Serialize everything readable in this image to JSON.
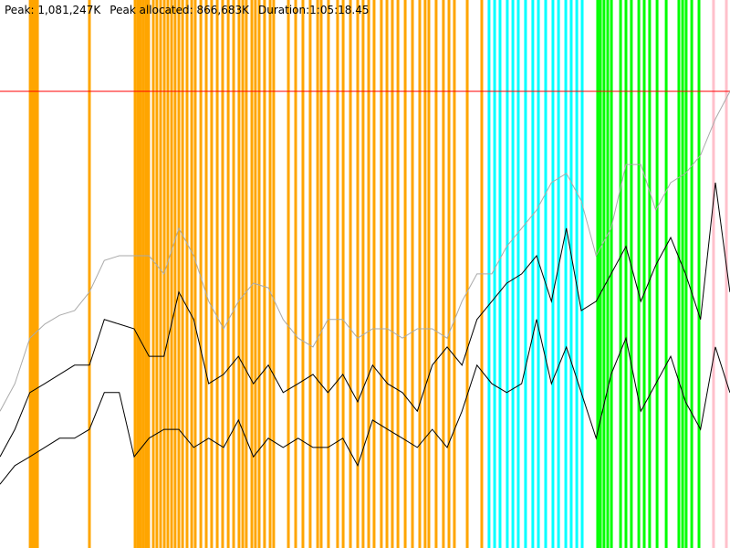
{
  "chart_data": {
    "type": "line",
    "annotations": [
      "Peak: 1,081,247K",
      "Peak allocated: 866,683K",
      "Duration:1:05:18.45"
    ],
    "xlim": [
      0,
      3918.45
    ],
    "ylim": [
      0,
      1297500
    ],
    "peak_line": {
      "value": 1081247,
      "color": "#ff0000"
    },
    "events": [
      {
        "color": "#ffa500",
        "x": [
          162,
          171,
          181,
          191,
          201,
          480,
          725,
          740,
          754,
          769,
          784,
          798,
          823,
          842,
          862,
          882,
          901,
          921,
          940,
          960,
          980,
          1004,
          1029,
          1048,
          1078,
          1107,
          1136,
          1166,
          1195,
          1225,
          1254,
          1283,
          1303,
          1322,
          1352,
          1371,
          1391,
          1420,
          1450,
          1469,
          1548,
          1587,
          1626,
          1665,
          1705,
          1724,
          1763,
          1812,
          1842,
          1881,
          1920,
          1949,
          1979,
          2008,
          2047,
          2077,
          2106,
          2136,
          2175,
          2214,
          2253,
          2282,
          2302,
          2341,
          2380,
          2410,
          2439,
          2508,
          2586
        ]
      },
      {
        "color": "#00ffff",
        "x": [
          2625,
          2655,
          2684,
          2723,
          2753,
          2782,
          2821,
          2860,
          2890,
          2929,
          2968,
          2998,
          3037,
          3066,
          3096,
          3125
        ]
      },
      {
        "color": "#00ff00",
        "x": [
          3208,
          3223,
          3242,
          3262,
          3282,
          3331,
          3360,
          3389,
          3429,
          3458,
          3487,
          3527,
          3576,
          3644,
          3664,
          3683,
          3713,
          3752
        ]
      },
      {
        "color": "#ffc0cb",
        "x": [
          3830,
          3899
        ]
      }
    ],
    "x": [
      0,
      80,
      160,
      240,
      320,
      400,
      480,
      560,
      640,
      720,
      800,
      880,
      960,
      1040,
      1120,
      1200,
      1280,
      1360,
      1440,
      1520,
      1600,
      1680,
      1760,
      1840,
      1920,
      2000,
      2080,
      2160,
      2240,
      2320,
      2400,
      2480,
      2560,
      2640,
      2720,
      2800,
      2880,
      2960,
      3040,
      3120,
      3200,
      3280,
      3360,
      3440,
      3520,
      3600,
      3680,
      3760,
      3840,
      3918
    ],
    "series": [
      {
        "color": "#aaaaaa",
        "values": [
          324000,
          389000,
          497000,
          530000,
          551000,
          562000,
          606000,
          681000,
          692000,
          692000,
          692000,
          649000,
          757000,
          692000,
          584000,
          519000,
          584000,
          627000,
          616000,
          541000,
          497000,
          476000,
          541000,
          541000,
          497000,
          519000,
          519000,
          497000,
          519000,
          519000,
          497000,
          584000,
          649000,
          649000,
          714000,
          757000,
          800000,
          865000,
          887000,
          822000,
          692000,
          757000,
          908000,
          908000,
          800000,
          865000,
          887000,
          930000,
          1016000,
          1081000
        ]
      },
      {
        "color": "#000000",
        "values": [
          216000,
          281000,
          368000,
          389000,
          411000,
          433000,
          433000,
          541000,
          530000,
          519000,
          454000,
          454000,
          606000,
          541000,
          389000,
          411000,
          454000,
          389000,
          433000,
          368000,
          389000,
          411000,
          368000,
          411000,
          346000,
          433000,
          389000,
          368000,
          324000,
          433000,
          476000,
          433000,
          541000,
          584000,
          627000,
          649000,
          692000,
          584000,
          757000,
          562000,
          584000,
          649000,
          714000,
          584000,
          670000,
          735000,
          649000,
          541000,
          865000,
          606000
        ]
      },
      {
        "color": "#000000",
        "values": [
          151000,
          195000,
          216000,
          238000,
          260000,
          260000,
          281000,
          368000,
          368000,
          216000,
          260000,
          281000,
          281000,
          238000,
          260000,
          238000,
          303000,
          216000,
          260000,
          238000,
          260000,
          238000,
          238000,
          260000,
          195000,
          303000,
          281000,
          260000,
          238000,
          281000,
          238000,
          324000,
          433000,
          389000,
          368000,
          389000,
          541000,
          389000,
          476000,
          368000,
          260000,
          411000,
          497000,
          324000,
          389000,
          454000,
          346000,
          281000,
          476000,
          368000
        ]
      }
    ]
  }
}
